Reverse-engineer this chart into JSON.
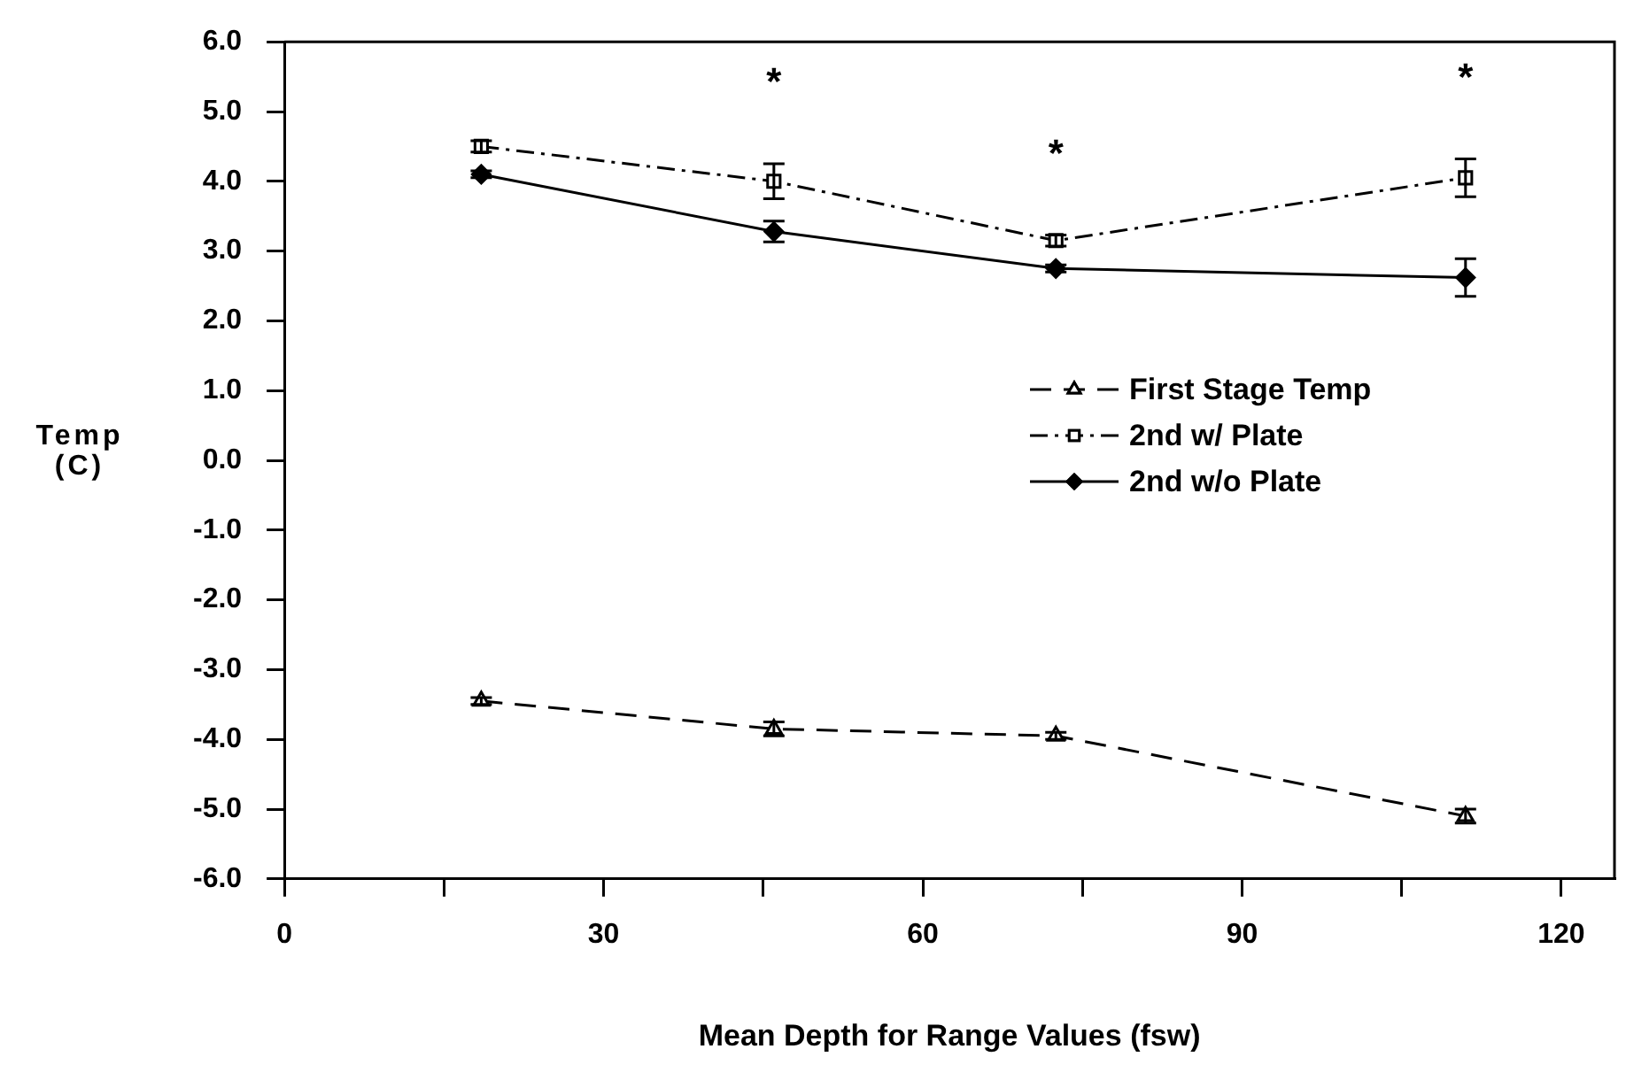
{
  "chart_data": {
    "type": "line",
    "xlabel": "Mean Depth for Range Values (fsw)",
    "ylabel": "Temp (C)",
    "xlim": [
      0,
      125
    ],
    "xticks": [
      0,
      {
        "value": 15,
        "label": null
      },
      30,
      {
        "value": 45,
        "label": null
      },
      60,
      {
        "value": 75,
        "label": null
      },
      90,
      {
        "value": 105,
        "label": null
      },
      120
    ],
    "ylim": [
      -6,
      6
    ],
    "yticks": [
      {
        "value": -6,
        "label": "-6.0"
      },
      {
        "value": -5,
        "label": "-5.0"
      },
      {
        "value": -4,
        "label": "-4.0"
      },
      {
        "value": -3,
        "label": "-3.0"
      },
      {
        "value": -2,
        "label": "-2.0"
      },
      {
        "value": -1,
        "label": "-1.0"
      },
      {
        "value": 0,
        "label": "0.0"
      },
      {
        "value": 1,
        "label": "1.0"
      },
      {
        "value": 2,
        "label": "2.0"
      },
      {
        "value": 3,
        "label": "3.0"
      },
      {
        "value": 4,
        "label": "4.0"
      },
      {
        "value": 5,
        "label": "5.0"
      },
      {
        "value": 6,
        "label": "6.0"
      }
    ],
    "x": [
      18.5,
      46,
      72.5,
      111
    ],
    "series": [
      {
        "name": "First Stage Temp",
        "color": "#000000",
        "values": [
          -3.45,
          -3.85,
          -3.95,
          -5.1
        ],
        "errors": [
          0.05,
          0.1,
          0.05,
          0.1
        ],
        "marker": "triangle",
        "line_style": "dashed"
      },
      {
        "name": "2nd w/ Plate",
        "color": "#000000",
        "values": [
          4.5,
          4.0,
          3.15,
          4.05
        ],
        "errors": [
          0.08,
          0.25,
          0.08,
          0.27
        ],
        "marker": "square",
        "line_style": "dotted"
      },
      {
        "name": "2nd w/o Plate",
        "color": "#000000",
        "values": [
          4.1,
          3.28,
          2.75,
          2.62
        ],
        "errors": [
          0.05,
          0.15,
          0.05,
          0.27
        ],
        "marker": "diamond",
        "line_style": "solid"
      }
    ],
    "annotations": [
      "*",
      "*",
      "*"
    ],
    "legend": "right",
    "grid": false
  }
}
